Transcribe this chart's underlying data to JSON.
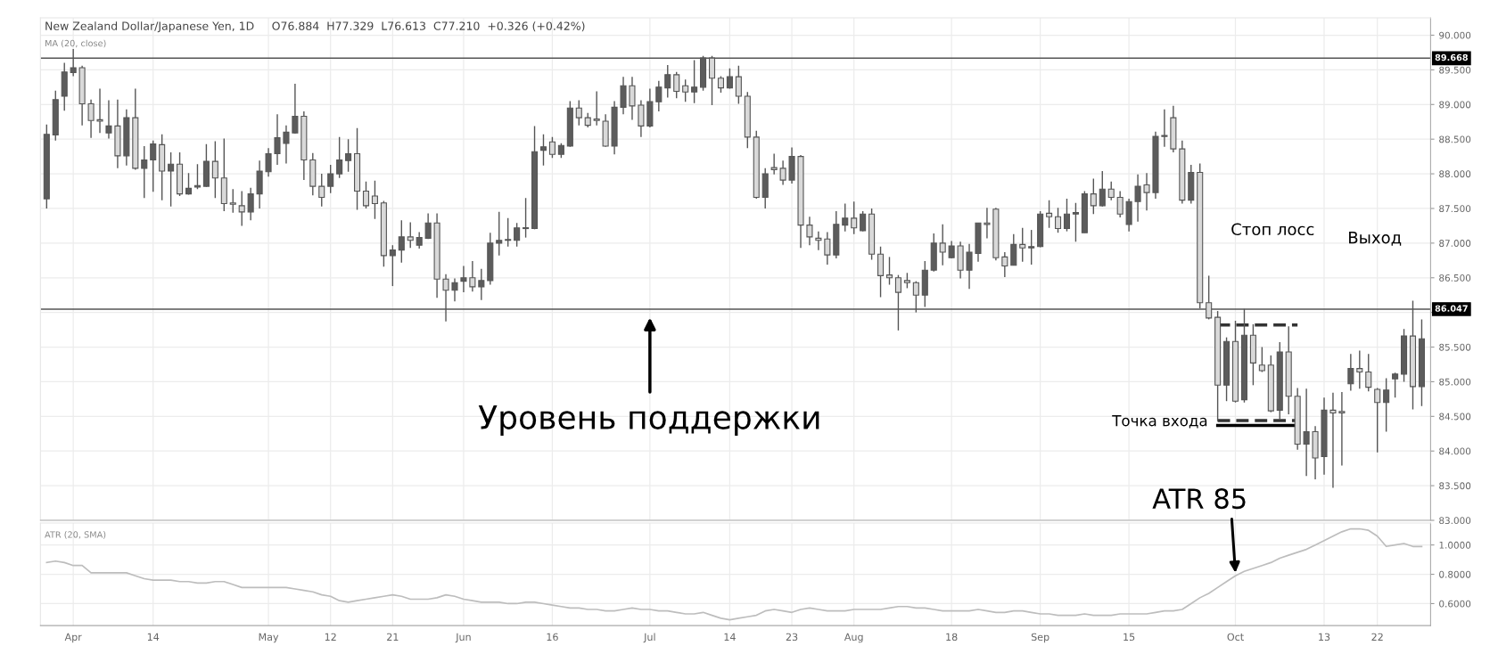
{
  "chart_data": [
    {
      "type": "candlestick",
      "title": "New Zealand Dollar/Japanese Yen, 1D",
      "subtitle": "O76.884  H77.329  L76.613  C77.210  +0.326 (+0.42%)",
      "categories": [
        null,
        null,
        null,
        "Apr",
        null,
        null,
        null,
        null,
        null,
        null,
        null,
        null,
        "14",
        null,
        null,
        null,
        null,
        null,
        null,
        null,
        null,
        null,
        null,
        null,
        null,
        "May",
        null,
        null,
        null,
        null,
        null,
        null,
        "12",
        null,
        null,
        null,
        null,
        null,
        null,
        "21",
        null,
        null,
        null,
        null,
        null,
        null,
        null,
        "Jun",
        null,
        null,
        null,
        null,
        null,
        null,
        null,
        null,
        null,
        "16",
        null,
        null,
        null,
        null,
        null,
        null,
        null,
        null,
        null,
        null,
        "Jul",
        null,
        null,
        null,
        null,
        null,
        null,
        null,
        null,
        "14",
        null,
        null,
        null,
        null,
        null,
        null,
        "23",
        null,
        null,
        null,
        null,
        null,
        null,
        "Aug",
        null,
        null,
        null,
        null,
        null,
        null,
        null,
        null,
        null,
        null,
        "18",
        null,
        null,
        null,
        null,
        null,
        null,
        null,
        null,
        null,
        "Sep",
        null,
        null,
        null,
        null,
        null,
        null,
        null,
        null,
        null,
        "15",
        null,
        null,
        null,
        null,
        null,
        null,
        null,
        null,
        null,
        null,
        null,
        "Oct",
        null,
        null,
        null,
        null,
        null,
        null,
        null,
        null,
        null,
        "13",
        null,
        null,
        null,
        null,
        null,
        "22",
        null,
        null,
        null,
        null,
        null
      ],
      "ohlc": [
        [
          87.64,
          88.71,
          87.5,
          88.57
        ],
        [
          88.56,
          89.2,
          88.48,
          89.07
        ],
        [
          89.12,
          89.6,
          88.91,
          89.47
        ],
        [
          89.46,
          89.8,
          89.41,
          89.53
        ],
        [
          89.53,
          89.56,
          88.7,
          89.01
        ],
        [
          89.01,
          89.07,
          88.52,
          88.77
        ],
        [
          88.78,
          89.23,
          88.59,
          88.76
        ],
        [
          88.59,
          89.06,
          88.51,
          88.69
        ],
        [
          88.69,
          89.07,
          88.08,
          88.26
        ],
        [
          88.26,
          88.93,
          88.12,
          88.81
        ],
        [
          88.81,
          89.23,
          88.06,
          88.08
        ],
        [
          88.08,
          88.4,
          87.65,
          88.2
        ],
        [
          88.2,
          88.48,
          87.74,
          88.43
        ],
        [
          88.42,
          88.57,
          87.62,
          88.04
        ],
        [
          88.04,
          88.31,
          87.53,
          88.14
        ],
        [
          88.14,
          88.31,
          87.68,
          87.71
        ],
        [
          87.71,
          88.01,
          87.7,
          87.79
        ],
        [
          87.81,
          88.14,
          87.78,
          87.83
        ],
        [
          87.82,
          88.43,
          87.81,
          88.18
        ],
        [
          88.18,
          88.47,
          87.65,
          87.94
        ],
        [
          87.94,
          88.51,
          87.46,
          87.57
        ],
        [
          87.58,
          87.78,
          87.44,
          87.56
        ],
        [
          87.54,
          87.75,
          87.25,
          87.45
        ],
        [
          87.45,
          87.8,
          87.33,
          87.71
        ],
        [
          87.71,
          88.19,
          87.5,
          88.04
        ],
        [
          88.03,
          88.37,
          87.96,
          88.29
        ],
        [
          88.29,
          88.86,
          88.13,
          88.52
        ],
        [
          88.44,
          88.7,
          88.15,
          88.6
        ],
        [
          88.59,
          89.3,
          88.58,
          88.83
        ],
        [
          88.83,
          88.9,
          87.91,
          88.2
        ],
        [
          88.2,
          88.3,
          87.69,
          87.82
        ],
        [
          87.82,
          88.0,
          87.53,
          87.66
        ],
        [
          87.82,
          88.13,
          87.72,
          88.0
        ],
        [
          88.0,
          88.53,
          87.94,
          88.2
        ],
        [
          88.19,
          88.5,
          88.03,
          88.29
        ],
        [
          88.29,
          88.66,
          87.48,
          87.75
        ],
        [
          87.75,
          87.89,
          87.5,
          87.54
        ],
        [
          87.68,
          87.9,
          87.35,
          87.57
        ],
        [
          87.58,
          87.61,
          86.66,
          86.82
        ],
        [
          86.82,
          86.97,
          86.38,
          86.9
        ],
        [
          86.9,
          87.33,
          86.72,
          87.09
        ],
        [
          87.09,
          87.3,
          86.93,
          87.04
        ],
        [
          86.97,
          87.16,
          86.92,
          87.08
        ],
        [
          87.07,
          87.43,
          87.06,
          87.29
        ],
        [
          87.29,
          87.43,
          86.21,
          86.48
        ],
        [
          86.48,
          86.55,
          85.87,
          86.32
        ],
        [
          86.32,
          86.49,
          86.16,
          86.43
        ],
        [
          86.45,
          86.67,
          86.29,
          86.5
        ],
        [
          86.5,
          86.74,
          86.3,
          86.37
        ],
        [
          86.37,
          86.63,
          86.18,
          86.46
        ],
        [
          86.46,
          87.15,
          86.4,
          87.0
        ],
        [
          87.0,
          87.45,
          86.82,
          87.04
        ],
        [
          87.04,
          87.36,
          86.95,
          87.05
        ],
        [
          87.04,
          87.29,
          86.95,
          87.22
        ],
        [
          87.22,
          87.65,
          87.08,
          87.21
        ],
        [
          87.21,
          88.69,
          87.2,
          88.32
        ],
        [
          88.34,
          88.57,
          88.12,
          88.39
        ],
        [
          88.46,
          88.53,
          88.23,
          88.28
        ],
        [
          88.28,
          88.44,
          88.23,
          88.41
        ],
        [
          88.4,
          89.05,
          88.39,
          88.95
        ],
        [
          88.95,
          89.06,
          88.7,
          88.81
        ],
        [
          88.81,
          88.88,
          88.67,
          88.7
        ],
        [
          88.79,
          89.19,
          88.7,
          88.77
        ],
        [
          88.76,
          88.86,
          88.39,
          88.4
        ],
        [
          88.4,
          89.05,
          88.28,
          88.96
        ],
        [
          88.96,
          89.4,
          88.86,
          89.27
        ],
        [
          89.27,
          89.4,
          88.78,
          88.98
        ],
        [
          88.99,
          89.06,
          88.53,
          88.69
        ],
        [
          88.69,
          89.23,
          88.67,
          89.04
        ],
        [
          89.04,
          89.34,
          88.9,
          89.25
        ],
        [
          89.24,
          89.57,
          89.1,
          89.43
        ],
        [
          89.43,
          89.47,
          89.09,
          89.19
        ],
        [
          89.27,
          89.36,
          89.04,
          89.18
        ],
        [
          89.18,
          89.64,
          89.02,
          89.25
        ],
        [
          89.25,
          89.7,
          89.2,
          89.67
        ],
        [
          89.67,
          89.7,
          88.99,
          89.38
        ],
        [
          89.38,
          89.41,
          89.17,
          89.24
        ],
        [
          89.24,
          89.52,
          89.23,
          89.4
        ],
        [
          89.4,
          89.56,
          89.01,
          89.12
        ],
        [
          89.12,
          89.18,
          88.37,
          88.53
        ],
        [
          88.53,
          88.62,
          87.64,
          87.66
        ],
        [
          87.66,
          88.08,
          87.5,
          88.0
        ],
        [
          88.09,
          88.29,
          87.99,
          88.06
        ],
        [
          88.08,
          88.19,
          87.84,
          87.91
        ],
        [
          87.91,
          88.38,
          87.86,
          88.25
        ],
        [
          88.25,
          88.27,
          86.93,
          87.26
        ],
        [
          87.26,
          87.38,
          86.97,
          87.09
        ],
        [
          87.07,
          87.17,
          86.9,
          87.04
        ],
        [
          87.06,
          87.16,
          86.69,
          86.83
        ],
        [
          86.83,
          87.46,
          86.78,
          87.27
        ],
        [
          87.26,
          87.57,
          87.17,
          87.36
        ],
        [
          87.36,
          87.6,
          87.13,
          87.22
        ],
        [
          87.18,
          87.46,
          87.17,
          87.42
        ],
        [
          87.42,
          87.5,
          86.76,
          86.84
        ],
        [
          86.84,
          86.95,
          86.22,
          86.53
        ],
        [
          86.54,
          86.8,
          86.4,
          86.5
        ],
        [
          86.5,
          86.54,
          85.74,
          86.29
        ],
        [
          86.46,
          86.57,
          86.35,
          86.43
        ],
        [
          86.43,
          86.45,
          86.0,
          86.25
        ],
        [
          86.25,
          86.74,
          86.08,
          86.61
        ],
        [
          86.61,
          87.14,
          86.59,
          87.0
        ],
        [
          87.0,
          87.27,
          86.68,
          86.87
        ],
        [
          86.79,
          87.03,
          86.78,
          86.96
        ],
        [
          86.96,
          87.02,
          86.49,
          86.61
        ],
        [
          86.61,
          86.99,
          86.34,
          86.87
        ],
        [
          86.85,
          87.29,
          86.73,
          87.29
        ],
        [
          87.29,
          87.51,
          87.07,
          87.27
        ],
        [
          87.49,
          87.51,
          86.75,
          86.79
        ],
        [
          86.8,
          86.87,
          86.51,
          86.67
        ],
        [
          86.68,
          87.13,
          86.68,
          86.98
        ],
        [
          86.98,
          87.22,
          86.73,
          86.93
        ],
        [
          86.93,
          87.19,
          86.69,
          86.95
        ],
        [
          86.95,
          87.46,
          86.94,
          87.42
        ],
        [
          87.43,
          87.62,
          87.22,
          87.38
        ],
        [
          87.38,
          87.51,
          87.15,
          87.21
        ],
        [
          87.21,
          87.64,
          87.17,
          87.42
        ],
        [
          87.42,
          87.58,
          87.02,
          87.44
        ],
        [
          87.15,
          87.75,
          87.15,
          87.71
        ],
        [
          87.71,
          87.93,
          87.42,
          87.54
        ],
        [
          87.54,
          88.04,
          87.53,
          87.78
        ],
        [
          87.78,
          87.89,
          87.62,
          87.66
        ],
        [
          87.66,
          87.75,
          87.37,
          87.42
        ],
        [
          87.27,
          87.64,
          87.17,
          87.6
        ],
        [
          87.6,
          87.99,
          87.31,
          87.82
        ],
        [
          87.84,
          88.01,
          87.47,
          87.73
        ],
        [
          87.73,
          88.61,
          87.64,
          88.54
        ],
        [
          88.54,
          88.93,
          88.39,
          88.55
        ],
        [
          88.81,
          88.98,
          88.31,
          88.36
        ],
        [
          88.36,
          88.48,
          87.57,
          87.62
        ],
        [
          87.62,
          88.13,
          87.57,
          88.02
        ],
        [
          88.02,
          88.15,
          86.06,
          86.14
        ],
        [
          86.14,
          86.53,
          85.9,
          85.92
        ],
        [
          85.93,
          86.02,
          84.43,
          84.95
        ],
        [
          84.95,
          85.64,
          84.72,
          85.58
        ],
        [
          85.58,
          85.88,
          84.7,
          84.72
        ],
        [
          84.74,
          86.05,
          84.7,
          85.67
        ],
        [
          85.67,
          85.83,
          84.95,
          85.27
        ],
        [
          85.24,
          85.5,
          85.14,
          85.16
        ],
        [
          85.24,
          85.38,
          84.56,
          84.58
        ],
        [
          84.59,
          85.57,
          84.46,
          85.43
        ],
        [
          85.43,
          85.8,
          84.53,
          84.79
        ],
        [
          84.79,
          84.91,
          84.02,
          84.1
        ],
        [
          84.1,
          84.9,
          83.64,
          84.28
        ],
        [
          84.28,
          84.36,
          83.59,
          83.9
        ],
        [
          83.92,
          84.77,
          83.66,
          84.59
        ],
        [
          84.59,
          84.84,
          83.47,
          84.55
        ],
        [
          84.57,
          84.85,
          83.79,
          84.55
        ],
        [
          84.97,
          85.4,
          84.87,
          85.19
        ],
        [
          85.19,
          85.45,
          84.9,
          85.14
        ],
        [
          85.14,
          85.4,
          84.86,
          84.92
        ],
        [
          84.89,
          84.91,
          83.98,
          84.7
        ],
        [
          84.7,
          85.05,
          84.28,
          84.88
        ],
        [
          85.04,
          85.13,
          84.77,
          85.11
        ],
        [
          85.11,
          85.76,
          85.0,
          85.66
        ],
        [
          85.66,
          86.17,
          84.6,
          84.93
        ],
        [
          84.93,
          85.9,
          84.65,
          85.62
        ]
      ],
      "colors": [
        "#5c5c5c",
        "#5c5c5c",
        "#5c5c5c",
        "#5c5c5c",
        "#d9d9d9",
        "#d9d9d9",
        "#d9d9d9",
        "#5c5c5c",
        "#d9d9d9",
        "#5c5c5c",
        "#d9d9d9",
        "#5c5c5c",
        "#5c5c5c",
        "#d9d9d9",
        "#5c5c5c",
        "#d9d9d9",
        "#5c5c5c",
        "#5c5c5c",
        "#5c5c5c",
        "#d9d9d9",
        "#d9d9d9",
        "#d9d9d9",
        "#d9d9d9",
        "#5c5c5c",
        "#5c5c5c",
        "#5c5c5c",
        "#5c5c5c",
        "#5c5c5c",
        "#5c5c5c",
        "#d9d9d9",
        "#d9d9d9",
        "#d9d9d9",
        "#5c5c5c",
        "#5c5c5c",
        "#5c5c5c",
        "#d9d9d9",
        "#d9d9d9",
        "#d9d9d9",
        "#d9d9d9",
        "#5c5c5c",
        "#5c5c5c",
        "#d9d9d9",
        "#5c5c5c",
        "#5c5c5c",
        "#d9d9d9",
        "#d9d9d9",
        "#5c5c5c",
        "#5c5c5c",
        "#d9d9d9",
        "#5c5c5c",
        "#5c5c5c",
        "#5c5c5c",
        "#5c5c5c",
        "#5c5c5c",
        "#d9d9d9",
        "#5c5c5c",
        "#5c5c5c",
        "#d9d9d9",
        "#5c5c5c",
        "#5c5c5c",
        "#d9d9d9",
        "#d9d9d9",
        "#d9d9d9",
        "#d9d9d9",
        "#5c5c5c",
        "#5c5c5c",
        "#d9d9d9",
        "#d9d9d9",
        "#5c5c5c",
        "#5c5c5c",
        "#5c5c5c",
        "#d9d9d9",
        "#d9d9d9",
        "#5c5c5c",
        "#5c5c5c",
        "#d9d9d9",
        "#d9d9d9",
        "#5c5c5c",
        "#d9d9d9",
        "#d9d9d9",
        "#d9d9d9",
        "#5c5c5c",
        "#d9d9d9",
        "#d9d9d9",
        "#5c5c5c",
        "#d9d9d9",
        "#d9d9d9",
        "#d9d9d9",
        "#d9d9d9",
        "#5c5c5c",
        "#5c5c5c",
        "#d9d9d9",
        "#5c5c5c",
        "#d9d9d9",
        "#d9d9d9",
        "#d9d9d9",
        "#d9d9d9",
        "#d9d9d9",
        "#d9d9d9",
        "#5c5c5c",
        "#5c5c5c",
        "#d9d9d9",
        "#5c5c5c",
        "#d9d9d9",
        "#5c5c5c",
        "#5c5c5c",
        "#d9d9d9",
        "#d9d9d9",
        "#d9d9d9",
        "#5c5c5c",
        "#d9d9d9",
        "#5c5c5c",
        "#5c5c5c",
        "#d9d9d9",
        "#d9d9d9",
        "#5c5c5c",
        "#5c5c5c",
        "#5c5c5c",
        "#d9d9d9",
        "#5c5c5c",
        "#d9d9d9",
        "#d9d9d9",
        "#5c5c5c",
        "#5c5c5c",
        "#d9d9d9",
        "#5c5c5c",
        "#5c5c5c",
        "#d9d9d9",
        "#d9d9d9",
        "#5c5c5c",
        "#d9d9d9",
        "#d9d9d9",
        "#d9d9d9",
        "#5c5c5c",
        "#d9d9d9",
        "#5c5c5c",
        "#d9d9d9",
        "#d9d9d9",
        "#d9d9d9",
        "#5c5c5c",
        "#d9d9d9",
        "#d9d9d9",
        "#5c5c5c",
        "#d9d9d9",
        "#5c5c5c",
        "#d9d9d9",
        "#d9d9d9",
        "#5c5c5c",
        "#d9d9d9",
        "#d9d9d9",
        "#d9d9d9",
        "#5c5c5c",
        "#5c5c5c",
        "#5c5c5c",
        "#d9d9d9",
        "#5c5c5c"
      ],
      "series": [
        {
          "type": "line",
          "color": "#333333",
          "line_style": "dashed",
          "values": [
            null,
            null,
            null,
            null,
            null,
            null,
            null,
            null,
            null,
            null,
            null,
            null,
            null,
            null,
            null,
            null,
            null,
            null,
            null,
            null,
            null,
            null,
            null,
            null,
            null,
            null,
            null,
            null,
            null,
            null,
            null,
            null,
            null,
            null,
            null,
            null,
            null,
            null,
            null,
            null,
            null,
            null,
            null,
            null,
            null,
            null,
            null,
            null,
            null,
            null,
            null,
            null,
            null,
            null,
            null,
            null,
            null,
            null,
            null,
            null,
            null,
            null,
            null,
            null,
            null,
            null,
            null,
            null,
            null,
            null,
            null,
            null,
            null,
            null,
            null,
            null,
            null,
            null,
            null,
            null,
            null,
            null,
            null,
            null,
            null,
            null,
            null,
            null,
            null,
            null,
            null,
            null,
            null,
            null,
            null,
            null,
            null,
            null,
            null,
            null,
            null,
            null,
            null,
            null,
            null,
            null,
            null,
            null,
            null,
            null,
            null,
            null,
            null,
            null,
            null,
            null,
            null,
            null,
            null,
            null,
            null,
            null,
            null,
            null,
            null,
            null,
            null,
            null,
            null,
            null,
            null,
            null,
            85.82,
            85.82,
            85.82,
            85.82,
            85.82,
            85.82,
            85.82,
            85.82,
            85.82,
            85.82,
            null,
            null,
            null,
            null,
            null,
            null,
            null,
            null,
            null,
            null,
            null,
            null,
            null,
            null
          ]
        },
        {
          "type": "line",
          "color": "#333333",
          "line_style": "dashed",
          "values": [
            null,
            null,
            null,
            null,
            null,
            null,
            null,
            null,
            null,
            null,
            null,
            null,
            null,
            null,
            null,
            null,
            null,
            null,
            null,
            null,
            null,
            null,
            null,
            null,
            null,
            null,
            null,
            null,
            null,
            null,
            null,
            null,
            null,
            null,
            null,
            null,
            null,
            null,
            null,
            null,
            null,
            null,
            null,
            null,
            null,
            null,
            null,
            null,
            null,
            null,
            null,
            null,
            null,
            null,
            null,
            null,
            null,
            null,
            null,
            null,
            null,
            null,
            null,
            null,
            null,
            null,
            null,
            null,
            null,
            null,
            null,
            null,
            null,
            null,
            null,
            null,
            null,
            null,
            null,
            null,
            null,
            null,
            null,
            null,
            null,
            null,
            null,
            null,
            null,
            null,
            null,
            null,
            null,
            null,
            null,
            null,
            null,
            null,
            null,
            null,
            null,
            null,
            null,
            null,
            null,
            null,
            null,
            null,
            null,
            null,
            null,
            null,
            null,
            null,
            null,
            null,
            null,
            null,
            null,
            null,
            null,
            null,
            null,
            null,
            null,
            null,
            null,
            null,
            null,
            null,
            null,
            null,
            84.44,
            84.44,
            84.44,
            84.44,
            84.44,
            84.44,
            84.44,
            84.44,
            84.44,
            84.44,
            null,
            null,
            null,
            null,
            null,
            null,
            null,
            null,
            null,
            null,
            null,
            null,
            null,
            null
          ]
        },
        {
          "type": "line",
          "color": "#000000",
          "line_style": "solid",
          "values": [
            null,
            null,
            null,
            null,
            null,
            null,
            null,
            null,
            null,
            null,
            null,
            null,
            null,
            null,
            null,
            null,
            null,
            null,
            null,
            null,
            null,
            null,
            null,
            null,
            null,
            null,
            null,
            null,
            null,
            null,
            null,
            null,
            null,
            null,
            null,
            null,
            null,
            null,
            null,
            null,
            null,
            null,
            null,
            null,
            null,
            null,
            null,
            null,
            null,
            null,
            null,
            null,
            null,
            null,
            null,
            null,
            null,
            null,
            null,
            null,
            null,
            null,
            null,
            null,
            null,
            null,
            null,
            null,
            null,
            null,
            null,
            null,
            null,
            null,
            null,
            null,
            null,
            null,
            null,
            null,
            null,
            null,
            null,
            null,
            null,
            null,
            null,
            null,
            null,
            null,
            null,
            null,
            null,
            null,
            null,
            null,
            null,
            null,
            null,
            null,
            null,
            null,
            null,
            null,
            null,
            null,
            null,
            null,
            null,
            null,
            null,
            null,
            null,
            null,
            null,
            null,
            null,
            null,
            null,
            null,
            null,
            null,
            null,
            null,
            null,
            null,
            null,
            null,
            null,
            null,
            null,
            null,
            84.37,
            84.37,
            84.37,
            84.37,
            84.37,
            84.37,
            84.37,
            84.37,
            84.37,
            84.37,
            null,
            null,
            null,
            null,
            null,
            null,
            null,
            null,
            null,
            null,
            null,
            null,
            null,
            null
          ]
        }
      ],
      "ylim": [
        83.0,
        90.25
      ],
      "yticks": [
        {
          "value": 83,
          "label": "83.000"
        },
        {
          "value": 83.5,
          "label": "83.500"
        },
        {
          "value": 84,
          "label": "84.000"
        },
        {
          "value": 84.5,
          "label": "84.500"
        },
        {
          "value": 85,
          "label": "85.000"
        },
        {
          "value": 85.5,
          "label": "85.500"
        },
        {
          "value": 86,
          "label": null
        },
        {
          "value": 86.5,
          "label": "86.500"
        },
        {
          "value": 87,
          "label": "87.000"
        },
        {
          "value": 87.5,
          "label": "87.500"
        },
        {
          "value": 88,
          "label": "88.000"
        },
        {
          "value": 88.5,
          "label": "88.500"
        },
        {
          "value": 89,
          "label": "89.000"
        },
        {
          "value": 89.5,
          "label": "89.500"
        },
        {
          "value": 90,
          "label": "90.000"
        }
      ],
      "ref_lines": [
        {
          "axis": "y",
          "value": 89.668,
          "label": "89.668",
          "color": "#555555"
        },
        {
          "axis": "y",
          "value": 86.047,
          "label": "86.047",
          "color": "#555555"
        }
      ],
      "annotations": [
        {
          "text": "Уровень поддержки",
          "x": "Jul",
          "y": 86.047
        },
        "Стоп лосс",
        "Выход",
        "Точка входа",
        "MA (20, close)"
      ],
      "grid": true,
      "tick_labels": "y"
    },
    {
      "type": "line",
      "title": "ATR (20, SMA)",
      "categories": [
        null,
        null,
        null,
        "Apr",
        null,
        null,
        null,
        null,
        null,
        null,
        null,
        null,
        "14",
        null,
        null,
        null,
        null,
        null,
        null,
        null,
        null,
        null,
        null,
        null,
        null,
        "May",
        null,
        null,
        null,
        null,
        null,
        null,
        "12",
        null,
        null,
        null,
        null,
        null,
        null,
        "21",
        null,
        null,
        null,
        null,
        null,
        null,
        null,
        "Jun",
        null,
        null,
        null,
        null,
        null,
        null,
        null,
        null,
        null,
        "16",
        null,
        null,
        null,
        null,
        null,
        null,
        null,
        null,
        null,
        null,
        "Jul",
        null,
        null,
        null,
        null,
        null,
        null,
        null,
        null,
        "14",
        null,
        null,
        null,
        null,
        null,
        null,
        "23",
        null,
        null,
        null,
        null,
        null,
        null,
        "Aug",
        null,
        null,
        null,
        null,
        null,
        null,
        null,
        null,
        null,
        null,
        "18",
        null,
        null,
        null,
        null,
        null,
        null,
        null,
        null,
        null,
        "Sep",
        null,
        null,
        null,
        null,
        null,
        null,
        null,
        null,
        null,
        "15",
        null,
        null,
        null,
        null,
        null,
        null,
        null,
        null,
        null,
        null,
        null,
        "Oct",
        null,
        null,
        null,
        null,
        null,
        null,
        null,
        null,
        null,
        "13",
        null,
        null,
        null,
        null,
        null,
        "22",
        null,
        null,
        null,
        null,
        null
      ],
      "series": [
        {
          "color": "#bdbdbd",
          "values": [
            0.88,
            0.89,
            0.88,
            0.86,
            0.86,
            0.81,
            0.81,
            0.81,
            0.81,
            0.81,
            0.79,
            0.77,
            0.76,
            0.76,
            0.76,
            0.75,
            0.75,
            0.74,
            0.74,
            0.75,
            0.75,
            0.73,
            0.71,
            0.71,
            0.71,
            0.71,
            0.71,
            0.71,
            0.7,
            0.69,
            0.68,
            0.66,
            0.65,
            0.62,
            0.61,
            0.62,
            0.63,
            0.64,
            0.65,
            0.66,
            0.65,
            0.63,
            0.63,
            0.63,
            0.64,
            0.66,
            0.65,
            0.63,
            0.62,
            0.61,
            0.61,
            0.61,
            0.6,
            0.6,
            0.61,
            0.61,
            0.6,
            0.59,
            0.58,
            0.57,
            0.57,
            0.56,
            0.56,
            0.55,
            0.55,
            0.56,
            0.57,
            0.56,
            0.56,
            0.55,
            0.55,
            0.54,
            0.53,
            0.53,
            0.54,
            0.52,
            0.5,
            0.49,
            0.5,
            0.51,
            0.52,
            0.55,
            0.56,
            0.55,
            0.54,
            0.56,
            0.57,
            0.56,
            0.55,
            0.55,
            0.55,
            0.56,
            0.56,
            0.56,
            0.56,
            0.57,
            0.58,
            0.58,
            0.57,
            0.57,
            0.56,
            0.55,
            0.55,
            0.55,
            0.55,
            0.56,
            0.55,
            0.54,
            0.54,
            0.55,
            0.55,
            0.54,
            0.53,
            0.53,
            0.52,
            0.52,
            0.52,
            0.53,
            0.52,
            0.52,
            0.52,
            0.53,
            0.53,
            0.53,
            0.53,
            0.54,
            0.55,
            0.55,
            0.56,
            0.6,
            0.64,
            0.67,
            0.71,
            0.75,
            0.79,
            0.82,
            0.84,
            0.86,
            0.88,
            0.91,
            0.93,
            0.95,
            0.97,
            1.0,
            1.03,
            1.06,
            1.09,
            1.11,
            1.11,
            1.1,
            1.06,
            0.99,
            1.0,
            1.01,
            0.99,
            0.99
          ]
        }
      ],
      "ylim": [
        0.45,
        1.15
      ],
      "yticks": [
        {
          "value": 0.6,
          "label": "0.6000"
        },
        {
          "value": 0.8,
          "label": "0.8000"
        },
        {
          "value": 1.0,
          "label": "1.0000"
        }
      ],
      "annotations": [
        {
          "text": "ATR 85",
          "x": "Oct",
          "y": 0.79
        }
      ],
      "grid": true
    }
  ]
}
